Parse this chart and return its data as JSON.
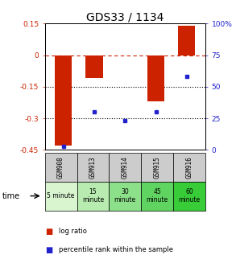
{
  "title": "GDS33 / 1134",
  "samples": [
    "GSM908",
    "GSM913",
    "GSM914",
    "GSM915",
    "GSM916"
  ],
  "time_labels": [
    "5 minute",
    "15\nminute",
    "30\nminute",
    "45\nminute",
    "60\nminute"
  ],
  "log_ratio": [
    -0.43,
    -0.11,
    0.0,
    -0.22,
    0.14
  ],
  "percentile": [
    3,
    30,
    23,
    30,
    58
  ],
  "left_ylim": [
    -0.45,
    0.15
  ],
  "right_ylim": [
    0,
    100
  ],
  "left_yticks": [
    0.15,
    0,
    -0.15,
    -0.3,
    -0.45
  ],
  "left_yticklabels": [
    "0.15",
    "0",
    "-0.15",
    "-0.3",
    "-0.45"
  ],
  "right_yticks": [
    100,
    75,
    50,
    25,
    0
  ],
  "right_yticklabels": [
    "100%",
    "75",
    "50",
    "25",
    "0"
  ],
  "bar_color": "#cc2200",
  "dot_color": "#2222cc",
  "title_fontsize": 10,
  "tick_fontsize": 6.5,
  "time_row_colors": [
    "#d8f5d0",
    "#b8ebb0",
    "#8de08a",
    "#60d460",
    "#38cc38"
  ],
  "gsm_bg": "#cccccc",
  "legend_red": "#cc2200",
  "legend_blue": "#2222cc"
}
